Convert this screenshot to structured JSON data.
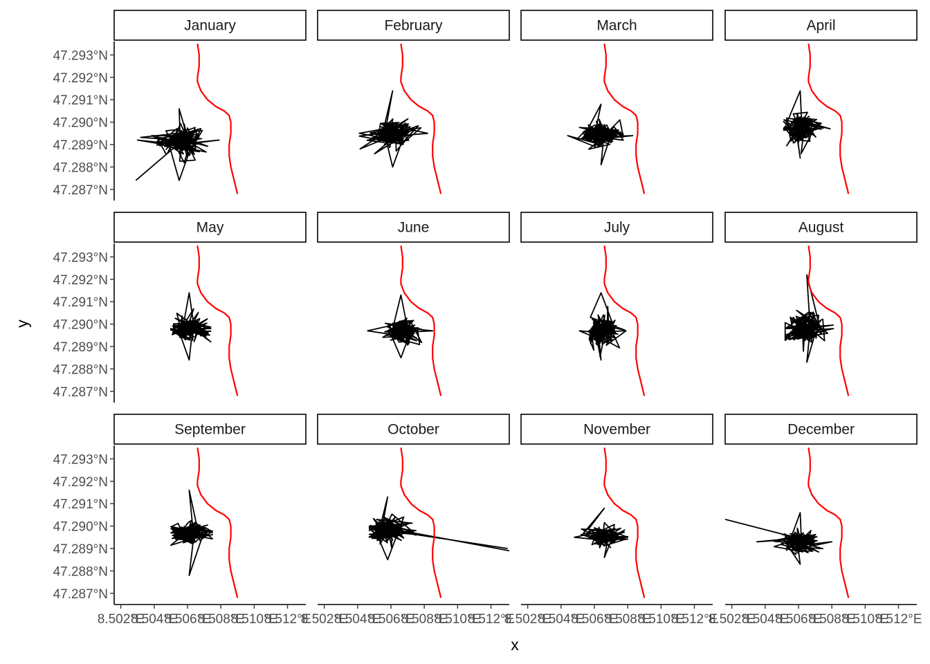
{
  "chart_data": {
    "type": "line",
    "xlabel": "x",
    "ylabel": "y",
    "xlim": [
      8.5016,
      8.5131
    ],
    "ylim": [
      47.2865,
      47.2936
    ],
    "x_ticks": [
      8.502,
      8.504,
      8.506,
      8.508,
      8.51,
      8.512
    ],
    "x_tick_labels": [
      "8.502°E",
      "8.504°E",
      "8.506°E",
      "8.508°E",
      "8.510°E",
      "8.512°E"
    ],
    "y_ticks": [
      47.287,
      47.288,
      47.289,
      47.29,
      47.291,
      47.292,
      47.293
    ],
    "y_tick_labels": [
      "47.287°N",
      "47.288°N",
      "47.289°N",
      "47.290°N",
      "47.291°N",
      "47.292°N",
      "47.293°N"
    ],
    "colors": {
      "track": "#000000",
      "river": "#ff0000"
    },
    "reference_line": {
      "color": "#ff0000",
      "x": [
        8.5066,
        8.5067,
        8.5067,
        8.5066,
        8.5066,
        8.5068,
        8.5072,
        8.5077,
        8.5082,
        8.5085,
        8.5086,
        8.5086,
        8.5085,
        8.5085,
        8.5086,
        8.5088,
        8.509
      ],
      "y": [
        47.2935,
        47.293,
        47.2925,
        47.292,
        47.2918,
        47.2914,
        47.291,
        47.2907,
        47.2905,
        47.2903,
        47.29,
        47.2895,
        47.289,
        47.2885,
        47.288,
        47.2874,
        47.2868
      ]
    },
    "panels": [
      {
        "month": "January",
        "center": [
          8.5055,
          47.2892
        ],
        "spread": [
          0.0012,
          0.0006
        ],
        "extent": [
          8.503,
          8.5079,
          47.2874,
          47.2906
        ]
      },
      {
        "month": "February",
        "center": [
          8.5061,
          47.2895
        ],
        "spread": [
          0.0011,
          0.00055
        ],
        "extent": [
          8.5041,
          8.5082,
          47.288,
          47.2914
        ]
      },
      {
        "month": "March",
        "center": [
          8.5064,
          47.2894
        ],
        "spread": [
          0.0011,
          0.0005
        ],
        "extent": [
          8.5044,
          8.5083,
          47.2881,
          47.2908
        ]
      },
      {
        "month": "April",
        "center": [
          8.5061,
          47.2897
        ],
        "spread": [
          0.0009,
          0.0006
        ],
        "extent": [
          8.5051,
          8.5079,
          47.2884,
          47.2914
        ]
      },
      {
        "month": "May",
        "center": [
          8.5061,
          47.2898
        ],
        "spread": [
          0.001,
          0.0005
        ],
        "extent": [
          8.505,
          8.5074,
          47.2884,
          47.2914
        ]
      },
      {
        "month": "June",
        "center": [
          8.5066,
          47.2897
        ],
        "spread": [
          0.0009,
          0.0005
        ],
        "extent": [
          8.5046,
          8.5085,
          47.2885,
          47.2913
        ]
      },
      {
        "month": "July",
        "center": [
          8.5064,
          47.2897
        ],
        "spread": [
          0.0008,
          0.0005
        ],
        "extent": [
          8.5051,
          8.5079,
          47.2884,
          47.2914
        ]
      },
      {
        "month": "August",
        "center": [
          8.5065,
          47.2898
        ],
        "spread": [
          0.001,
          0.0006
        ],
        "extent": [
          8.5052,
          8.5081,
          47.2883,
          47.2922
        ]
      },
      {
        "month": "September",
        "center": [
          8.5061,
          47.2897
        ],
        "spread": [
          0.001,
          0.0005
        ],
        "extent": [
          8.505,
          8.5075,
          47.2878,
          47.2916
        ]
      },
      {
        "month": "October",
        "center": [
          8.5058,
          47.2898
        ],
        "spread": [
          0.0011,
          0.0005
        ],
        "extent": [
          8.5047,
          8.5075,
          47.2885,
          47.2913
        ]
      },
      {
        "month": "November",
        "center": [
          8.5066,
          47.2895
        ],
        "spread": [
          0.001,
          0.0004
        ],
        "extent": [
          8.5048,
          8.508,
          47.2886,
          47.2908
        ]
      },
      {
        "month": "December",
        "center": [
          8.5061,
          47.2893
        ],
        "spread": [
          0.0011,
          0.0004
        ],
        "extent": [
          8.5035,
          8.508,
          47.2883,
          47.2906
        ]
      }
    ],
    "outlier_segments": [
      {
        "month": "January",
        "x": [
          8.5062,
          8.5029
        ],
        "y": [
          47.2895,
          47.2874
        ]
      },
      {
        "month": "October",
        "x": [
          8.5066,
          8.5131
        ],
        "y": [
          47.2898,
          47.2889
        ]
      },
      {
        "month": "October",
        "x": [
          8.5068,
          8.513
        ],
        "y": [
          47.2897,
          47.289
        ]
      },
      {
        "month": "December",
        "x": [
          8.5063,
          8.5016
        ],
        "y": [
          47.2894,
          47.2903
        ]
      }
    ]
  }
}
